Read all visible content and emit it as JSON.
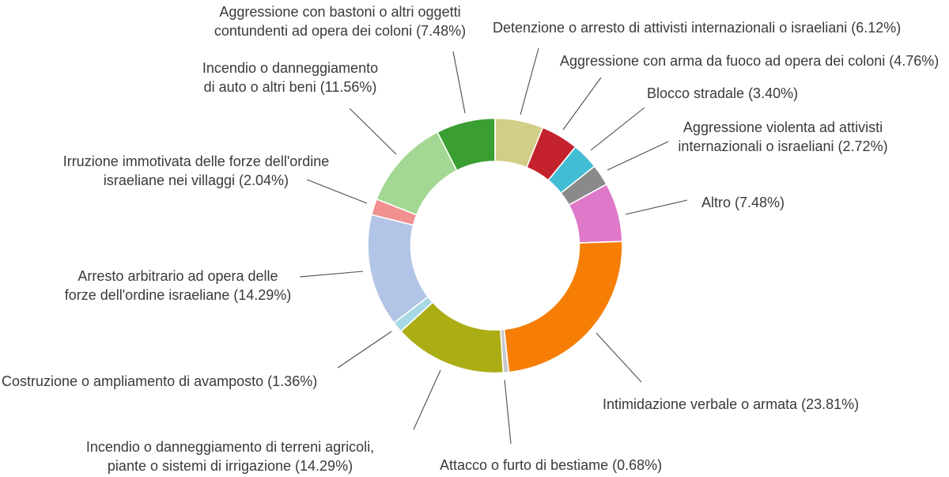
{
  "chart_data": {
    "type": "donut",
    "title": "",
    "unit": "percent",
    "start_angle_deg": 90,
    "direction": "clockwise",
    "text_color": "#3a3a3a",
    "wedge_edge_color": "#ffffff",
    "leader_line_color": "#4d4d4d",
    "segments": [
      {
        "key": "detenzione",
        "name": "Detenzione o arresto di attivisti internazionali o israeliani",
        "pct": 6.12,
        "color": "#d3ce87",
        "label_lines": [
          "Detenzione o arresto di attivisti internazionali o israeliani (6.12%)"
        ]
      },
      {
        "key": "arma-da-fuoco",
        "name": "Aggressione con arma da fuoco ad opera dei coloni",
        "pct": 4.76,
        "color": "#c4222d",
        "label_lines": [
          "Aggressione con arma da fuoco ad opera dei coloni (4.76%)"
        ]
      },
      {
        "key": "blocco-stradale",
        "name": "Blocco stradale",
        "pct": 3.4,
        "color": "#42bdd4",
        "label_lines": [
          "Blocco stradale (3.40%)"
        ]
      },
      {
        "key": "aggressione-violenta",
        "name": "Aggressione violenta ad attivisti internazionali o israeliani",
        "pct": 2.72,
        "color": "#8a8a8a",
        "label_lines": [
          "Aggressione violenta ad attivisti",
          "internazionali o israeliani (2.72%)"
        ]
      },
      {
        "key": "altro",
        "name": "Altro",
        "pct": 7.48,
        "color": "#de78c8",
        "label_lines": [
          "Altro (7.48%)"
        ]
      },
      {
        "key": "intimidazione",
        "name": "Intimidazione verbale o armata",
        "pct": 23.81,
        "color": "#f67e07",
        "label_lines": [
          "Intimidazione verbale o armata (23.81%)"
        ]
      },
      {
        "key": "bestiame",
        "name": "Attacco o furto di bestiame",
        "pct": 0.68,
        "color": "#c7c7ce",
        "label_lines": [
          "Attacco o furto di bestiame (0.68%)"
        ]
      },
      {
        "key": "terreni-agricoli",
        "name": "Incendio o danneggiamento di terreni agricoli, piante o sistemi di irrigazione",
        "pct": 14.29,
        "color": "#abad15",
        "label_lines": [
          "Incendio o danneggiamento di terreni agricoli,",
          "piante o sistemi di irrigazione (14.29%)"
        ]
      },
      {
        "key": "avamposto",
        "name": "Costruzione o ampliamento di avamposto",
        "pct": 1.36,
        "color": "#a6d9e4",
        "label_lines": [
          "Costruzione o ampliamento di avamposto (1.36%)"
        ]
      },
      {
        "key": "arresto-arbitrario",
        "name": "Arresto arbitrario ad opera delle forze dell'ordine israeliane",
        "pct": 14.29,
        "color": "#b2c5e6",
        "label_lines": [
          "Arresto arbitrario ad opera delle",
          "forze dell'ordine israeliane (14.29%)"
        ]
      },
      {
        "key": "irruzione",
        "name": "Irruzione immotivata delle forze dell'ordine israeliane nei villaggi",
        "pct": 2.04,
        "color": "#f19090",
        "label_lines": [
          "Irruzione immotivata delle forze dell'ordine",
          "israeliane nei villaggi (2.04%)"
        ]
      },
      {
        "key": "incendio-auto",
        "name": "Incendio o danneggiamento di auto o altri beni",
        "pct": 11.56,
        "color": "#a2d794",
        "label_lines": [
          "Incendio o danneggiamento",
          "di auto o altri beni (11.56%)"
        ]
      },
      {
        "key": "bastoni",
        "name": "Aggressione con bastoni o altri oggetti contundenti ad opera dei coloni",
        "pct": 7.48,
        "color": "#3a9e33",
        "label_lines": [
          "Aggressione con bastoni o altri oggetti",
          "contundenti ad opera dei coloni (7.48%)"
        ]
      }
    ]
  }
}
